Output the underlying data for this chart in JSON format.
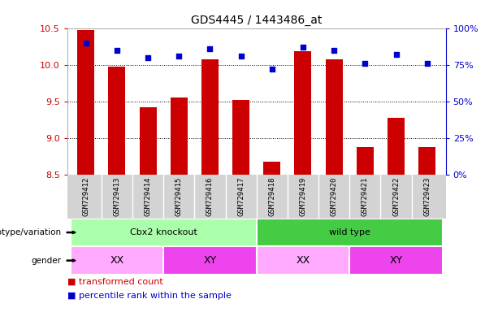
{
  "title": "GDS4445 / 1443486_at",
  "samples": [
    "GSM729412",
    "GSM729413",
    "GSM729414",
    "GSM729415",
    "GSM729416",
    "GSM729417",
    "GSM729418",
    "GSM729419",
    "GSM729420",
    "GSM729421",
    "GSM729422",
    "GSM729423"
  ],
  "transformed_count": [
    10.47,
    9.97,
    9.42,
    9.55,
    10.07,
    9.52,
    8.68,
    10.18,
    10.07,
    8.88,
    9.28,
    8.88
  ],
  "percentile_rank": [
    90,
    85,
    80,
    81,
    86,
    81,
    72,
    87,
    85,
    76,
    82,
    76
  ],
  "y_min": 8.5,
  "y_max": 10.5,
  "y_ticks": [
    8.5,
    9.0,
    9.5,
    10.0,
    10.5
  ],
  "right_y_ticks": [
    0,
    25,
    50,
    75,
    100
  ],
  "right_y_tick_labels": [
    "0%",
    "25%",
    "50%",
    "75%",
    "100%"
  ],
  "bar_color": "#cc0000",
  "dot_color": "#0000cc",
  "genotype_groups": [
    {
      "label": "Cbx2 knockout",
      "start": 0,
      "end": 5,
      "color": "#aaffaa"
    },
    {
      "label": "wild type",
      "start": 6,
      "end": 11,
      "color": "#44cc44"
    }
  ],
  "gender_groups": [
    {
      "label": "XX",
      "start": 0,
      "end": 2,
      "color": "#ffaaff"
    },
    {
      "label": "XY",
      "start": 3,
      "end": 5,
      "color": "#ee44ee"
    },
    {
      "label": "XX",
      "start": 6,
      "end": 8,
      "color": "#ffaaff"
    },
    {
      "label": "XY",
      "start": 9,
      "end": 11,
      "color": "#ee44ee"
    }
  ],
  "label_genotype": "genotype/variation",
  "label_gender": "gender",
  "legend_items": [
    {
      "label": "transformed count",
      "color": "#cc0000"
    },
    {
      "label": "percentile rank within the sample",
      "color": "#0000cc"
    }
  ],
  "background_color": "#ffffff",
  "tick_label_color_left": "#cc0000",
  "tick_label_color_right": "#0000cc",
  "sample_bg_color": "#d3d3d3",
  "grid_yticks": [
    9.0,
    9.5,
    10.0
  ]
}
